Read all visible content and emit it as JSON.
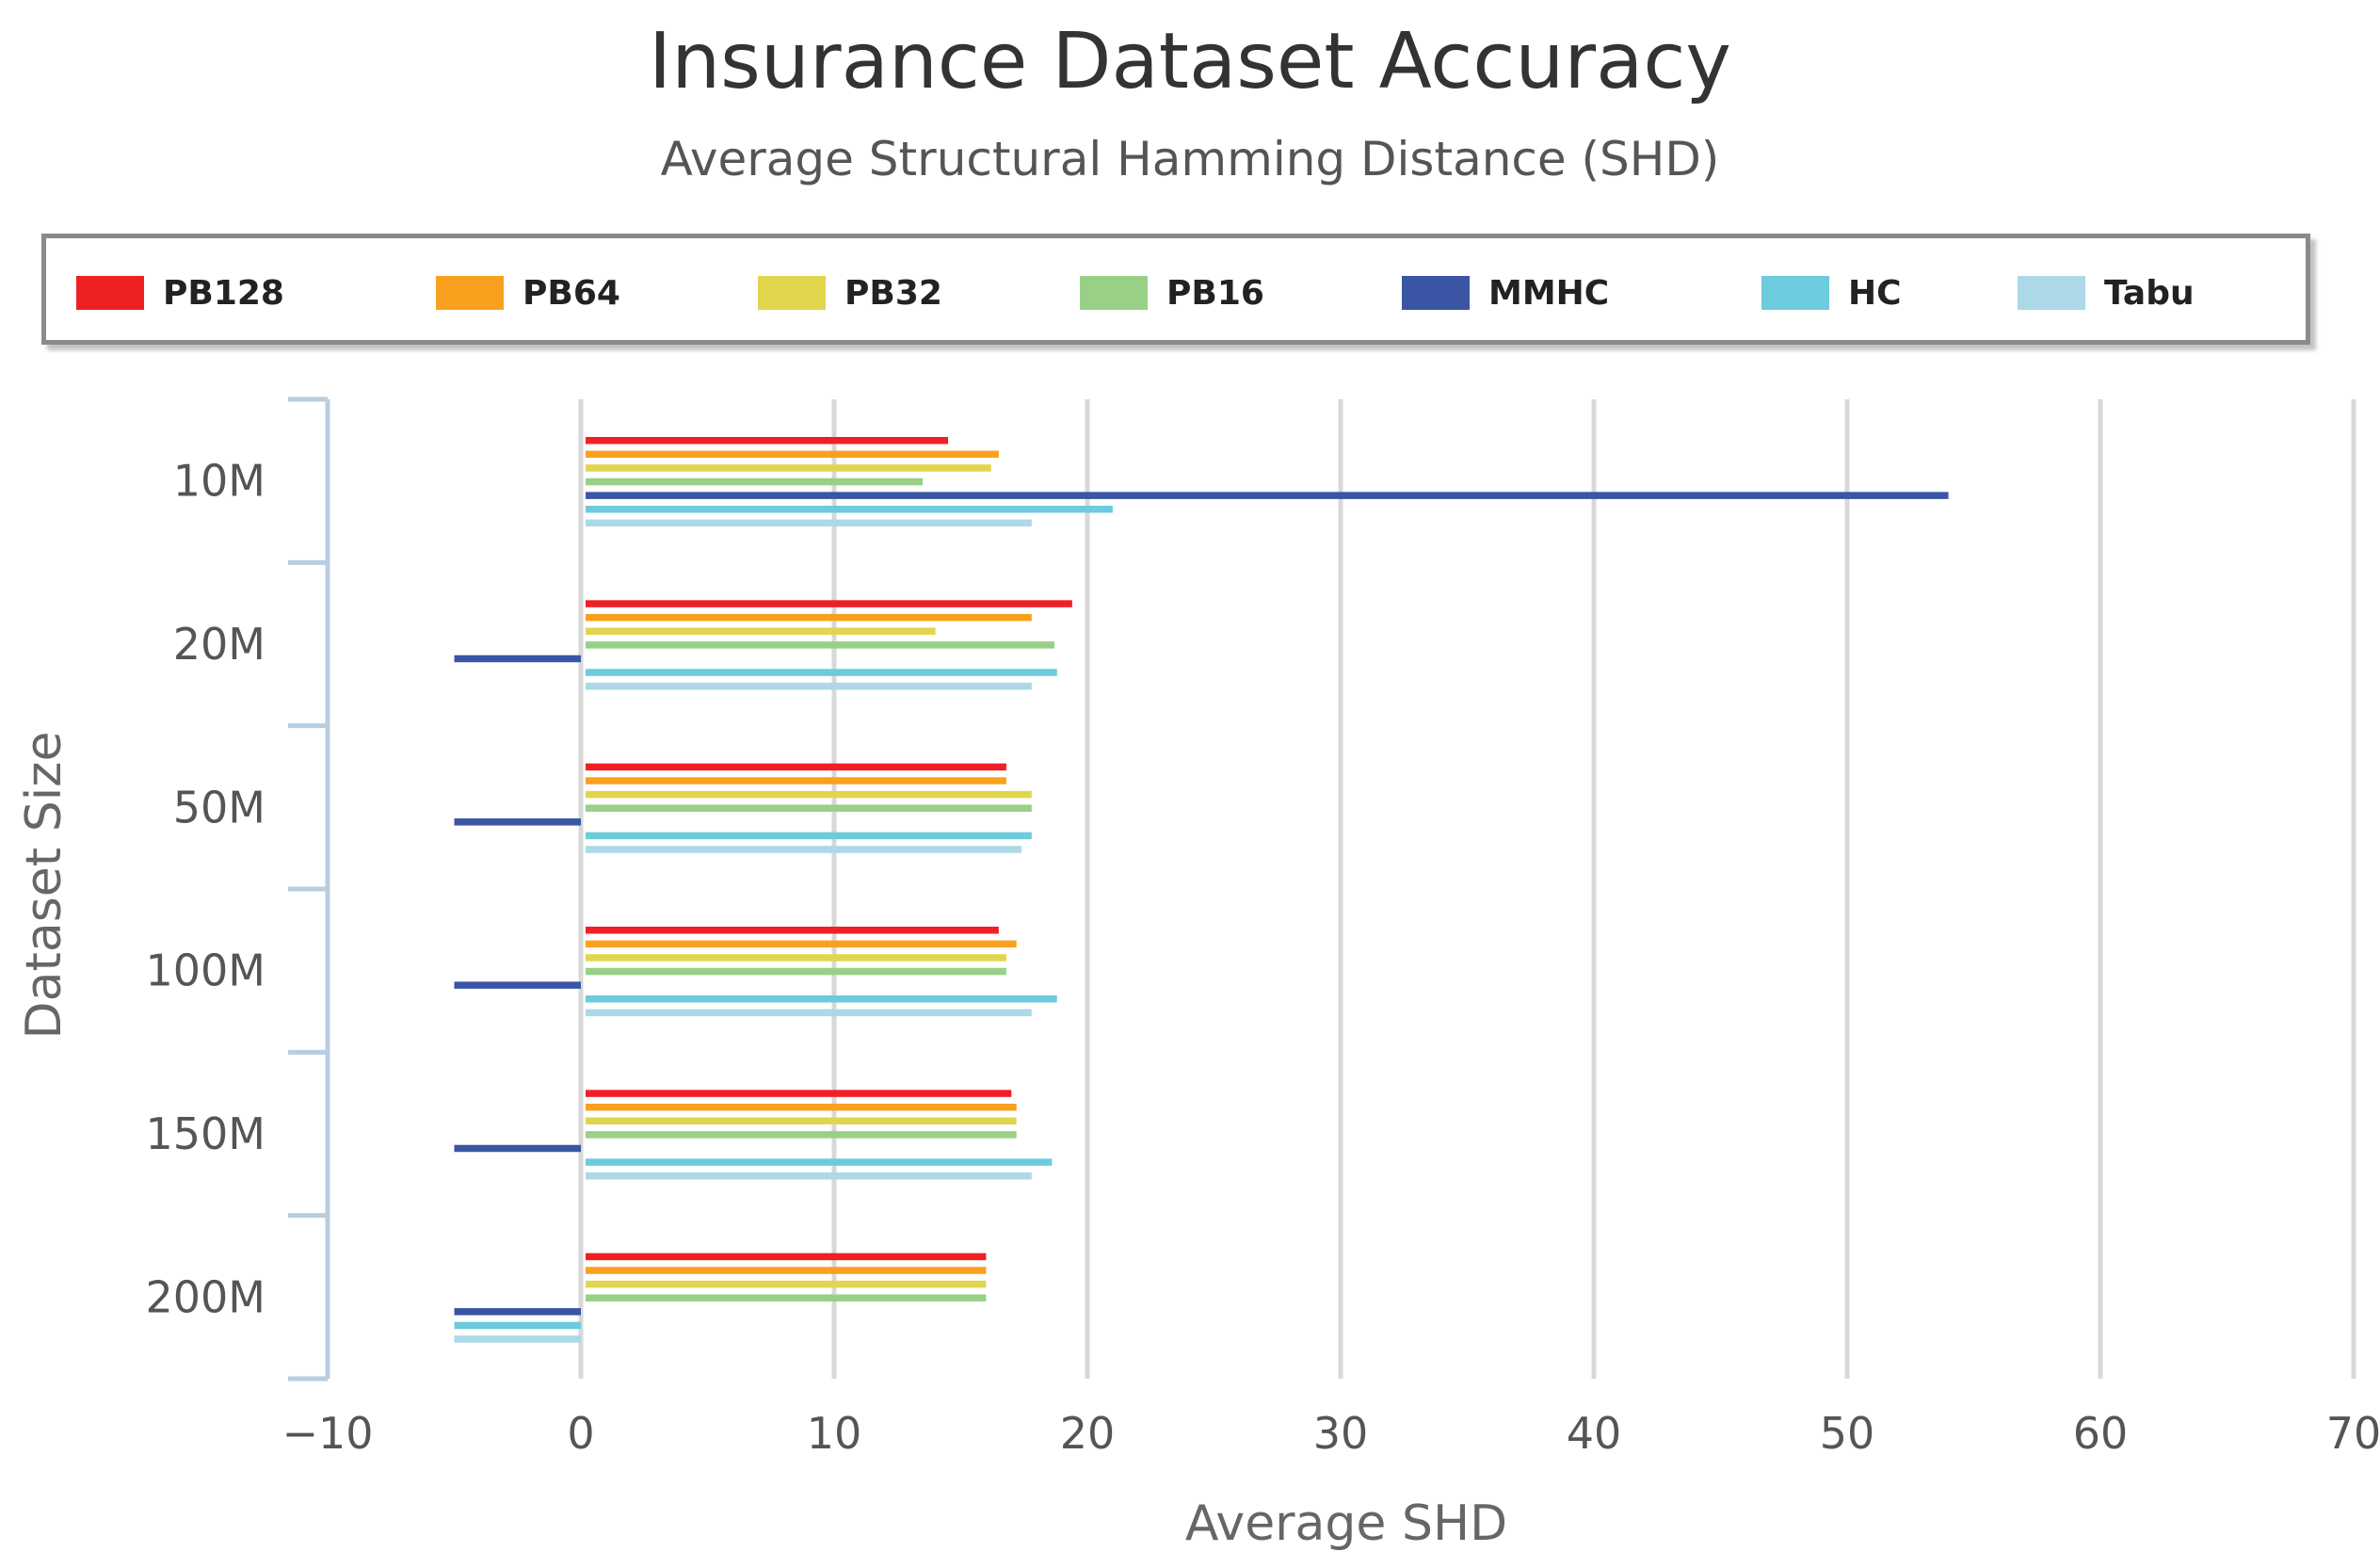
{
  "chart_data": {
    "type": "bar",
    "orientation": "horizontal",
    "title": "Insurance Dataset Accuracy",
    "subtitle": "Average Structural Hamming Distance (SHD)",
    "xlabel": "Average SHD",
    "ylabel": "Dataset Size",
    "xlim": [
      -10,
      70
    ],
    "xticks": [
      "−10",
      "0",
      "10",
      "20",
      "30",
      "40",
      "50",
      "60",
      "70"
    ],
    "xtick_values": [
      -10,
      0,
      10,
      20,
      30,
      40,
      50,
      60,
      70
    ],
    "categories": [
      "10M",
      "20M",
      "50M",
      "100M",
      "150M",
      "200M"
    ],
    "grid": "vertical",
    "legend_position": "top",
    "series": [
      {
        "name": "PB128",
        "color": "#ee2024",
        "values": [
          14.5,
          19.4,
          16.8,
          16.5,
          17.0,
          16.0
        ]
      },
      {
        "name": "PB64",
        "color": "#f9a11e",
        "values": [
          16.5,
          17.8,
          16.8,
          17.2,
          17.2,
          16.0
        ]
      },
      {
        "name": "PB32",
        "color": "#e2d54e",
        "values": [
          16.2,
          14.0,
          17.8,
          16.8,
          17.2,
          16.0
        ]
      },
      {
        "name": "PB16",
        "color": "#98d087",
        "values": [
          13.5,
          18.7,
          17.8,
          16.8,
          17.2,
          16.0
        ]
      },
      {
        "name": "MMHC",
        "color": "#3a55a4",
        "values": [
          54.0,
          -5.0,
          -5.0,
          -5.0,
          -5.0,
          -5.0
        ]
      },
      {
        "name": "HC",
        "color": "#6ccbdc",
        "values": [
          21.0,
          18.8,
          17.8,
          18.8,
          18.6,
          -5.0
        ]
      },
      {
        "name": "Tabu",
        "color": "#acd8e7",
        "values": [
          17.8,
          17.8,
          17.4,
          17.8,
          17.8,
          -5.0
        ]
      }
    ]
  }
}
